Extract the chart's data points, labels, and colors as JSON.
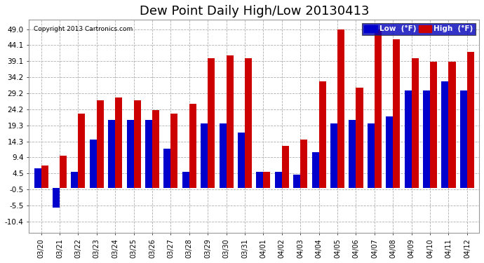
{
  "title": "Dew Point Daily High/Low 20130413",
  "copyright": "Copyright 2013 Cartronics.com",
  "dates": [
    "03/20",
    "03/21",
    "03/22",
    "03/23",
    "03/24",
    "03/25",
    "03/26",
    "03/27",
    "03/28",
    "03/29",
    "03/30",
    "03/31",
    "04/01",
    "04/02",
    "04/03",
    "04/04",
    "04/05",
    "04/06",
    "04/07",
    "04/08",
    "04/09",
    "04/10",
    "04/11",
    "04/12"
  ],
  "low": [
    6,
    -6,
    5,
    15,
    21,
    21,
    21,
    12,
    5,
    20,
    20,
    17,
    5,
    5,
    4,
    11,
    20,
    21,
    20,
    22,
    30,
    30,
    33,
    30
  ],
  "high": [
    7,
    10,
    23,
    27,
    28,
    27,
    24,
    23,
    26,
    40,
    41,
    40,
    5,
    13,
    15,
    33,
    49,
    31,
    49,
    46,
    40,
    39,
    39,
    42
  ],
  "low_color": "#0000cc",
  "high_color": "#cc0000",
  "background_color": "#ffffff",
  "plot_bg_color": "#ffffff",
  "grid_color": "#b0b0b0",
  "yticks": [
    -10.4,
    -5.5,
    -0.5,
    4.5,
    9.4,
    14.3,
    19.3,
    24.2,
    29.2,
    34.2,
    39.1,
    44.1,
    49.0
  ],
  "ylim": [
    -14,
    52
  ],
  "title_fontsize": 13,
  "legend_low_label": "Low  (°F)",
  "legend_high_label": "High  (°F)",
  "legend_bg": "#0000bb",
  "bar_width": 0.38
}
